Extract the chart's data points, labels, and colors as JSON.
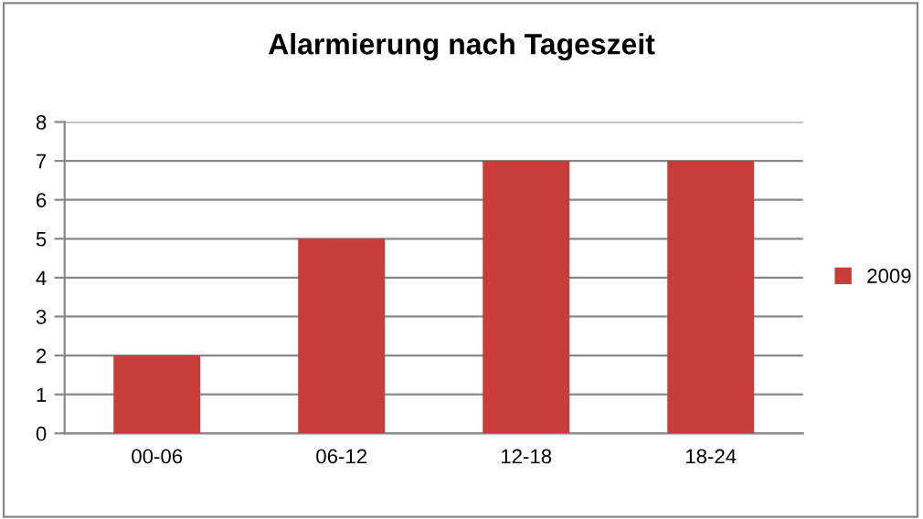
{
  "chart_data": {
    "type": "bar",
    "title": "Alarmierung nach Tageszeit",
    "categories": [
      "00-06",
      "06-12",
      "12-18",
      "18-24"
    ],
    "series": [
      {
        "name": "2009",
        "color": "#c83c3a",
        "values": [
          2,
          5,
          7,
          7
        ]
      }
    ],
    "ylim": [
      0,
      8
    ],
    "yticks": [
      0,
      1,
      2,
      3,
      4,
      5,
      6,
      7,
      8
    ],
    "grid": "y",
    "legend": "right"
  }
}
